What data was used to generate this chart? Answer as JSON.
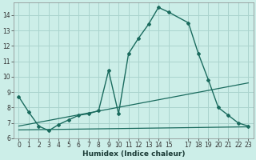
{
  "title": "",
  "xlabel": "Humidex (Indice chaleur)",
  "background_color": "#cceee8",
  "grid_color": "#aad4ce",
  "line_color": "#1a6b5e",
  "xlim": [
    -0.5,
    23.5
  ],
  "ylim": [
    6.0,
    14.8
  ],
  "yticks": [
    6,
    7,
    8,
    9,
    10,
    11,
    12,
    13,
    14
  ],
  "xticks": [
    0,
    1,
    2,
    3,
    4,
    5,
    6,
    7,
    8,
    9,
    10,
    11,
    12,
    13,
    14,
    15,
    17,
    18,
    19,
    20,
    21,
    22,
    23
  ],
  "line1_x": [
    0,
    1,
    2,
    3,
    4,
    5,
    6,
    7,
    8,
    9,
    10,
    11,
    12,
    13,
    14,
    15,
    17,
    18,
    19,
    20,
    21,
    22,
    23
  ],
  "line1_y": [
    8.7,
    7.7,
    6.8,
    6.5,
    6.9,
    7.2,
    7.5,
    7.6,
    7.8,
    10.4,
    7.6,
    11.5,
    12.5,
    13.4,
    14.5,
    14.2,
    13.5,
    11.5,
    9.8,
    8.0,
    7.5,
    7.0,
    6.8
  ],
  "line2_x": [
    0,
    23
  ],
  "line2_y": [
    6.8,
    9.6
  ],
  "line3_x": [
    0,
    23
  ],
  "line3_y": [
    6.55,
    6.75
  ]
}
